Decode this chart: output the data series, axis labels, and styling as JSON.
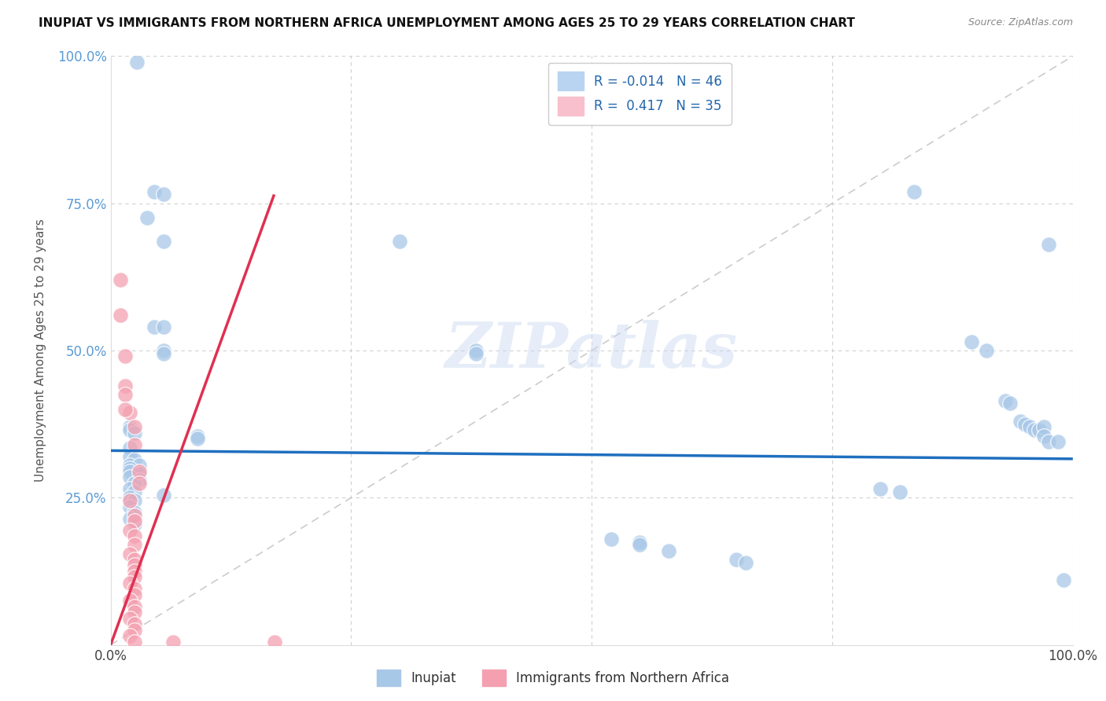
{
  "title": "INUPIAT VS IMMIGRANTS FROM NORTHERN AFRICA UNEMPLOYMENT AMONG AGES 25 TO 29 YEARS CORRELATION CHART",
  "source": "Source: ZipAtlas.com",
  "ylabel": "Unemployment Among Ages 25 to 29 years",
  "xlim": [
    0,
    1
  ],
  "ylim": [
    0,
    1
  ],
  "watermark": "ZIPatlas",
  "inupiat_color": "#a8c8e8",
  "immigrants_color": "#f4a0b0",
  "inupiat_line_color": "#1f6fbf",
  "immigrants_line_color": "#e03050",
  "inupiat_scatter": [
    [
      0.027,
      0.99
    ],
    [
      0.045,
      0.77
    ],
    [
      0.055,
      0.765
    ],
    [
      0.038,
      0.725
    ],
    [
      0.055,
      0.685
    ],
    [
      0.3,
      0.685
    ],
    [
      0.045,
      0.54
    ],
    [
      0.055,
      0.54
    ],
    [
      0.055,
      0.5
    ],
    [
      0.055,
      0.495
    ],
    [
      0.38,
      0.5
    ],
    [
      0.38,
      0.495
    ],
    [
      0.02,
      0.37
    ],
    [
      0.02,
      0.365
    ],
    [
      0.025,
      0.36
    ],
    [
      0.09,
      0.355
    ],
    [
      0.09,
      0.35
    ],
    [
      0.02,
      0.335
    ],
    [
      0.02,
      0.32
    ],
    [
      0.025,
      0.315
    ],
    [
      0.02,
      0.305
    ],
    [
      0.03,
      0.305
    ],
    [
      0.02,
      0.3
    ],
    [
      0.02,
      0.295
    ],
    [
      0.03,
      0.29
    ],
    [
      0.02,
      0.285
    ],
    [
      0.03,
      0.28
    ],
    [
      0.025,
      0.275
    ],
    [
      0.02,
      0.265
    ],
    [
      0.025,
      0.26
    ],
    [
      0.055,
      0.255
    ],
    [
      0.02,
      0.25
    ],
    [
      0.025,
      0.245
    ],
    [
      0.02,
      0.235
    ],
    [
      0.025,
      0.225
    ],
    [
      0.02,
      0.215
    ],
    [
      0.025,
      0.205
    ],
    [
      0.52,
      0.18
    ],
    [
      0.55,
      0.175
    ],
    [
      0.55,
      0.17
    ],
    [
      0.58,
      0.16
    ],
    [
      0.65,
      0.145
    ],
    [
      0.66,
      0.14
    ],
    [
      0.8,
      0.265
    ],
    [
      0.82,
      0.26
    ],
    [
      0.835,
      0.77
    ],
    [
      0.895,
      0.515
    ],
    [
      0.91,
      0.5
    ],
    [
      0.93,
      0.415
    ],
    [
      0.935,
      0.41
    ],
    [
      0.945,
      0.38
    ],
    [
      0.95,
      0.375
    ],
    [
      0.955,
      0.37
    ],
    [
      0.96,
      0.365
    ],
    [
      0.965,
      0.365
    ],
    [
      0.97,
      0.37
    ],
    [
      0.97,
      0.355
    ],
    [
      0.975,
      0.345
    ],
    [
      0.975,
      0.68
    ],
    [
      0.985,
      0.345
    ],
    [
      0.99,
      0.11
    ]
  ],
  "immigrants_scatter": [
    [
      0.02,
      0.395
    ],
    [
      0.025,
      0.37
    ],
    [
      0.025,
      0.34
    ],
    [
      0.03,
      0.295
    ],
    [
      0.03,
      0.275
    ],
    [
      0.02,
      0.245
    ],
    [
      0.025,
      0.22
    ],
    [
      0.025,
      0.21
    ],
    [
      0.02,
      0.195
    ],
    [
      0.025,
      0.185
    ],
    [
      0.025,
      0.17
    ],
    [
      0.02,
      0.155
    ],
    [
      0.025,
      0.145
    ],
    [
      0.025,
      0.135
    ],
    [
      0.025,
      0.125
    ],
    [
      0.025,
      0.115
    ],
    [
      0.02,
      0.105
    ],
    [
      0.025,
      0.095
    ],
    [
      0.025,
      0.085
    ],
    [
      0.02,
      0.075
    ],
    [
      0.025,
      0.065
    ],
    [
      0.025,
      0.055
    ],
    [
      0.02,
      0.045
    ],
    [
      0.025,
      0.035
    ],
    [
      0.025,
      0.025
    ],
    [
      0.02,
      0.015
    ],
    [
      0.025,
      0.005
    ],
    [
      0.065,
      0.005
    ],
    [
      0.17,
      0.005
    ],
    [
      0.01,
      0.56
    ],
    [
      0.01,
      0.62
    ],
    [
      0.015,
      0.49
    ],
    [
      0.015,
      0.44
    ],
    [
      0.015,
      0.425
    ],
    [
      0.015,
      0.4
    ]
  ],
  "inupiat_trend": [
    -0.014,
    0.33
  ],
  "immigrants_trend_slope": 4.5,
  "immigrants_trend_intercept": 0.0
}
